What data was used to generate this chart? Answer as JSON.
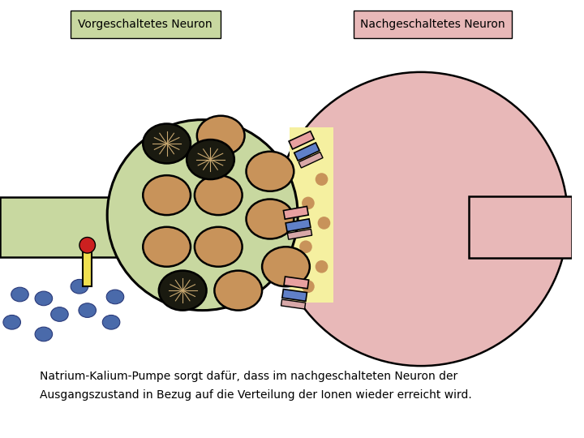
{
  "label_pre": "Vorgeschaltetes Neuron",
  "label_post": "Nachgeschaltetes Neuron",
  "caption_line1": "Natrium-Kalium-Pumpe sorgt dafür, dass im nachgeschalteten Neuron der",
  "caption_line2": "Ausgangszustand in Bezug auf die Verteilung der Ionen wieder erreicht wird.",
  "bg_color": "#ffffff",
  "axon_color_pre": "#c8d8a0",
  "axon_color_post": "#e8b8b8",
  "synaptic_cleft_color": "#f5f0a0",
  "terminal_circle_color": "#c8d8a0",
  "vesicle_fill": "#c8935a",
  "ion_color": "#4a6aaa",
  "pump_yellow": "#f0e050",
  "pump_red": "#cc2020",
  "receptor_pink": "#e8a0a0",
  "receptor_blue": "#6080c8",
  "label_bg_pre": "#c8d8a0",
  "label_bg_post": "#e8b8b8"
}
